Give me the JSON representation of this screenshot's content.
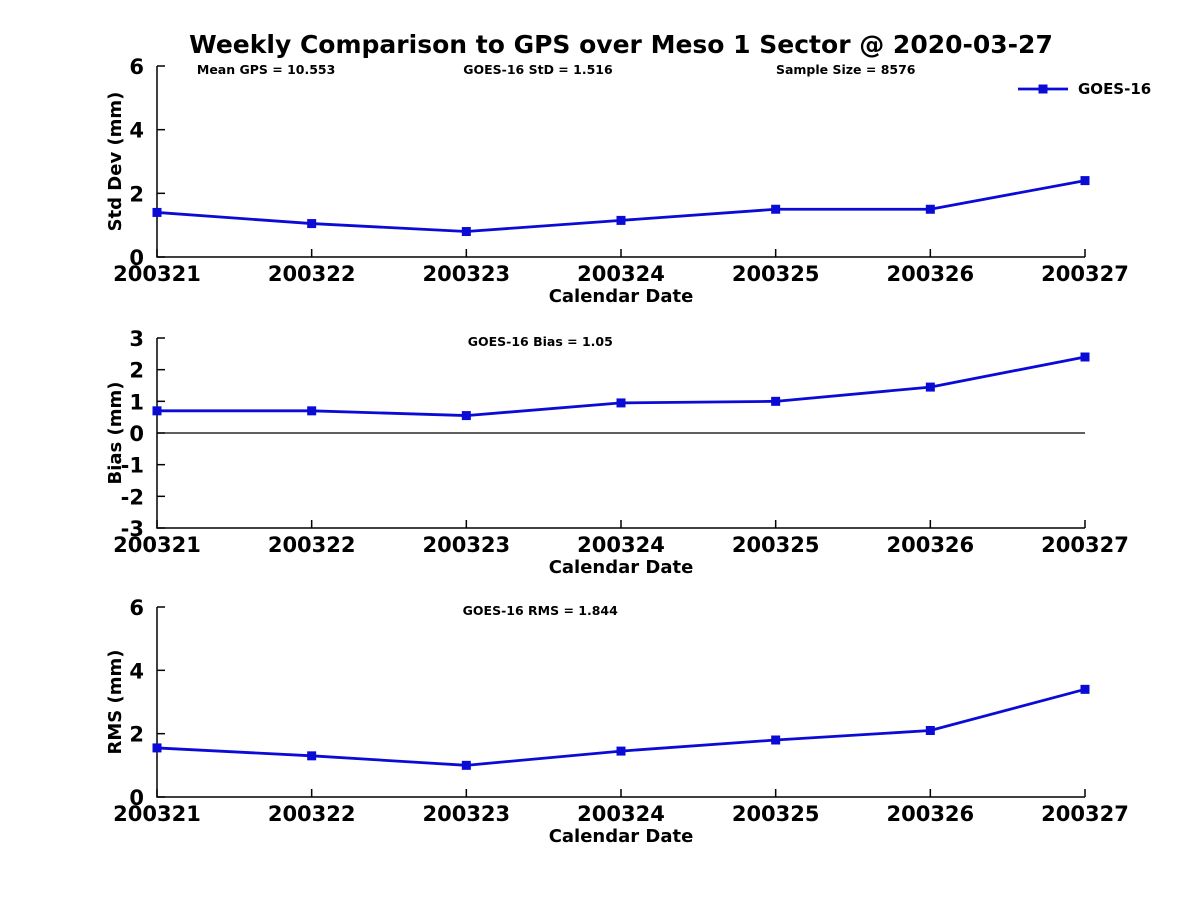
{
  "page": {
    "title": "Weekly Comparison to GPS over Meso 1 Sector @ 2020-03-27"
  },
  "legend": {
    "label": "GOES-16",
    "color": "#0b0bd6",
    "position": "top-right-subplot-1"
  },
  "chart_data": [
    {
      "type": "line",
      "series_name": "GOES-16",
      "categories": [
        "200321",
        "200322",
        "200323",
        "200324",
        "200325",
        "200326",
        "200327"
      ],
      "values": [
        1.4,
        1.05,
        0.8,
        1.15,
        1.5,
        1.5,
        2.4
      ],
      "xlabel": "Calendar Date",
      "ylabel": "Std Dev (mm)",
      "ylim": [
        0,
        6
      ],
      "yticks": [
        0,
        2,
        4,
        6
      ],
      "grid": false,
      "legend": true,
      "zero_line": false,
      "marker": "square",
      "annotations": [
        {
          "text": "Mean GPS = 10.553",
          "xfrac": 0.043,
          "anchor": "start"
        },
        {
          "text": "GOES-16 StD = 1.516",
          "xfrac": 0.33,
          "anchor": "start"
        },
        {
          "text": "Sample Size = 8576",
          "xfrac": 0.667,
          "anchor": "start"
        }
      ]
    },
    {
      "type": "line",
      "series_name": "GOES-16",
      "categories": [
        "200321",
        "200322",
        "200323",
        "200324",
        "200325",
        "200326",
        "200327"
      ],
      "values": [
        0.7,
        0.7,
        0.55,
        0.95,
        1.0,
        1.45,
        2.4
      ],
      "xlabel": "Calendar Date",
      "ylabel": "Bias (mm)",
      "ylim": [
        -3,
        3
      ],
      "yticks": [
        -3,
        -2,
        -1,
        0,
        1,
        2,
        3
      ],
      "grid": false,
      "legend": false,
      "zero_line": true,
      "marker": "square",
      "annotations": [
        {
          "text": "GOES-16 Bias  = 1.05",
          "xfrac": 0.413,
          "anchor": "middle"
        }
      ]
    },
    {
      "type": "line",
      "series_name": "GOES-16",
      "categories": [
        "200321",
        "200322",
        "200323",
        "200324",
        "200325",
        "200326",
        "200327"
      ],
      "values": [
        1.55,
        1.3,
        1.0,
        1.45,
        1.8,
        2.1,
        3.4
      ],
      "xlabel": "Calendar Date",
      "ylabel": "RMS (mm)",
      "ylim": [
        0,
        6
      ],
      "yticks": [
        0,
        2,
        4,
        6
      ],
      "grid": false,
      "legend": false,
      "zero_line": false,
      "marker": "square",
      "annotations": [
        {
          "text": "GOES-16 RMS = 1.844",
          "xfrac": 0.413,
          "anchor": "middle"
        }
      ]
    }
  ]
}
